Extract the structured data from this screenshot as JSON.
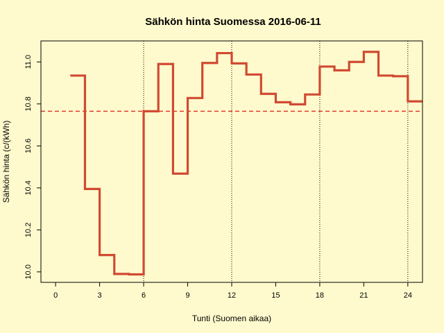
{
  "chart_data": {
    "type": "line",
    "style": "step",
    "title": "Sähkön hinta Suomessa 2016-06-11",
    "xlabel": "Tunti (Suomen aikaa)",
    "ylabel": "Sähkön hinta (c/(kWh)",
    "xlim": [
      -1,
      25
    ],
    "ylim": [
      9.95,
      11.1
    ],
    "x_ticks": [
      0,
      3,
      6,
      9,
      12,
      15,
      18,
      21,
      24
    ],
    "y_ticks": [
      10.0,
      10.2,
      10.4,
      10.6,
      10.8,
      11.0
    ],
    "y_tick_labels": [
      "10.0",
      "10.2",
      "10.4",
      "10.6",
      "10.8",
      "11.0"
    ],
    "vertical_reference_lines": [
      6,
      12,
      18,
      24
    ],
    "mean_line": 10.765,
    "series": [
      {
        "x": [
          1,
          2,
          3,
          4,
          5,
          6,
          7,
          8,
          9,
          10,
          11,
          12,
          13,
          14,
          15,
          16,
          17,
          18,
          19,
          20,
          21,
          22,
          23,
          24,
          25
        ],
        "values": [
          10.935,
          10.395,
          10.08,
          9.99,
          9.988,
          10.765,
          10.99,
          10.468,
          10.828,
          10.995,
          11.042,
          10.993,
          10.94,
          10.848,
          10.808,
          10.798,
          10.845,
          10.978,
          10.96,
          11.0,
          11.048,
          10.935,
          10.932,
          10.812,
          10.812
        ]
      }
    ],
    "colors": {
      "series": "#D04A32",
      "mean_line": "#E03A2E",
      "reference_lines": "#000000",
      "background": "#FFFACD"
    }
  }
}
